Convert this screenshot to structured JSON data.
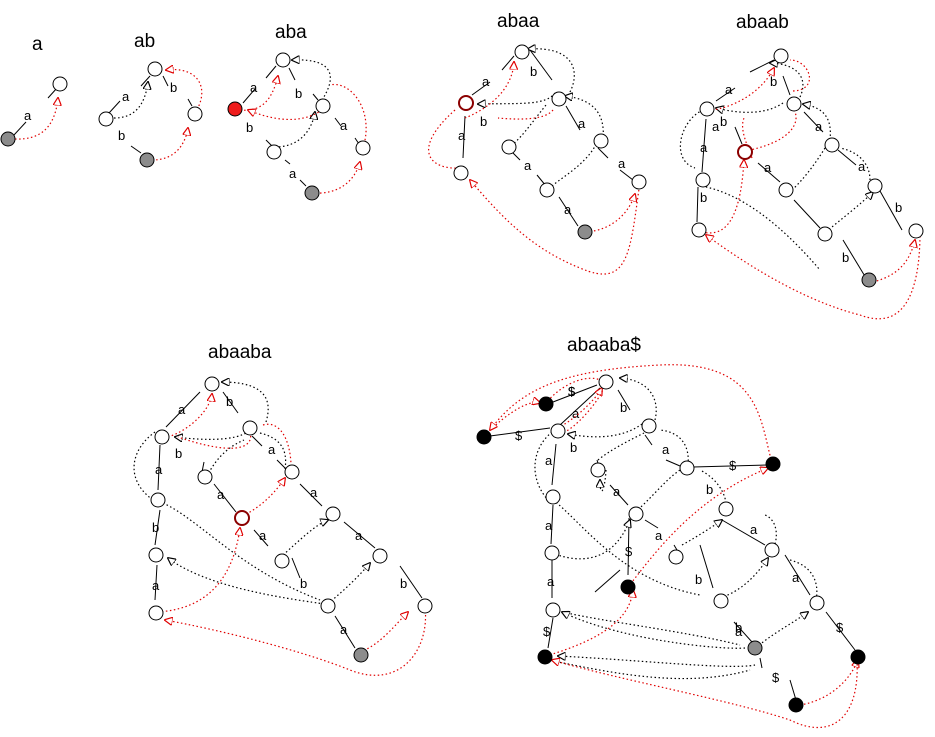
{
  "panels": [
    {
      "id": "a",
      "title": "a",
      "edge_labels": [
        "a"
      ]
    },
    {
      "id": "ab",
      "title": "ab",
      "edge_labels": [
        "a",
        "b",
        "b"
      ]
    },
    {
      "id": "aba",
      "title": "aba",
      "edge_labels": [
        "a",
        "b",
        "b",
        "a",
        "a"
      ]
    },
    {
      "id": "abaa",
      "title": "abaa",
      "edge_labels": [
        "a",
        "b",
        "a",
        "b",
        "a",
        "a",
        "a",
        "a"
      ]
    },
    {
      "id": "abaab",
      "title": "abaab",
      "edge_labels": [
        "a",
        "b",
        "a",
        "a",
        "b",
        "a",
        "a",
        "a",
        "b",
        "b",
        "b"
      ]
    },
    {
      "id": "abaaba",
      "title": "abaaba",
      "edge_labels": [
        "a",
        "b",
        "a",
        "b",
        "a",
        "a",
        "b",
        "a",
        "a",
        "b",
        "a",
        "a",
        "b",
        "a"
      ]
    },
    {
      "id": "abaaba-end",
      "title": "abaaba$",
      "edge_labels": [
        "$",
        "$",
        "a",
        "b",
        "$",
        "a",
        "b",
        "a",
        "a",
        "a",
        "b",
        "a",
        "$",
        "a",
        "b",
        "a",
        "a",
        "$",
        "b",
        "$",
        "a",
        "$",
        "$"
      ]
    }
  ],
  "colors": {
    "node_fill": "#ffffff",
    "leaf_gray": "#8c8c8c",
    "leaf_black": "#000000",
    "active_red": "#ee1c1c",
    "ring_red": "#8b0000",
    "suffix_link_red": "#e00000",
    "suffix_link_black": "#000000"
  }
}
